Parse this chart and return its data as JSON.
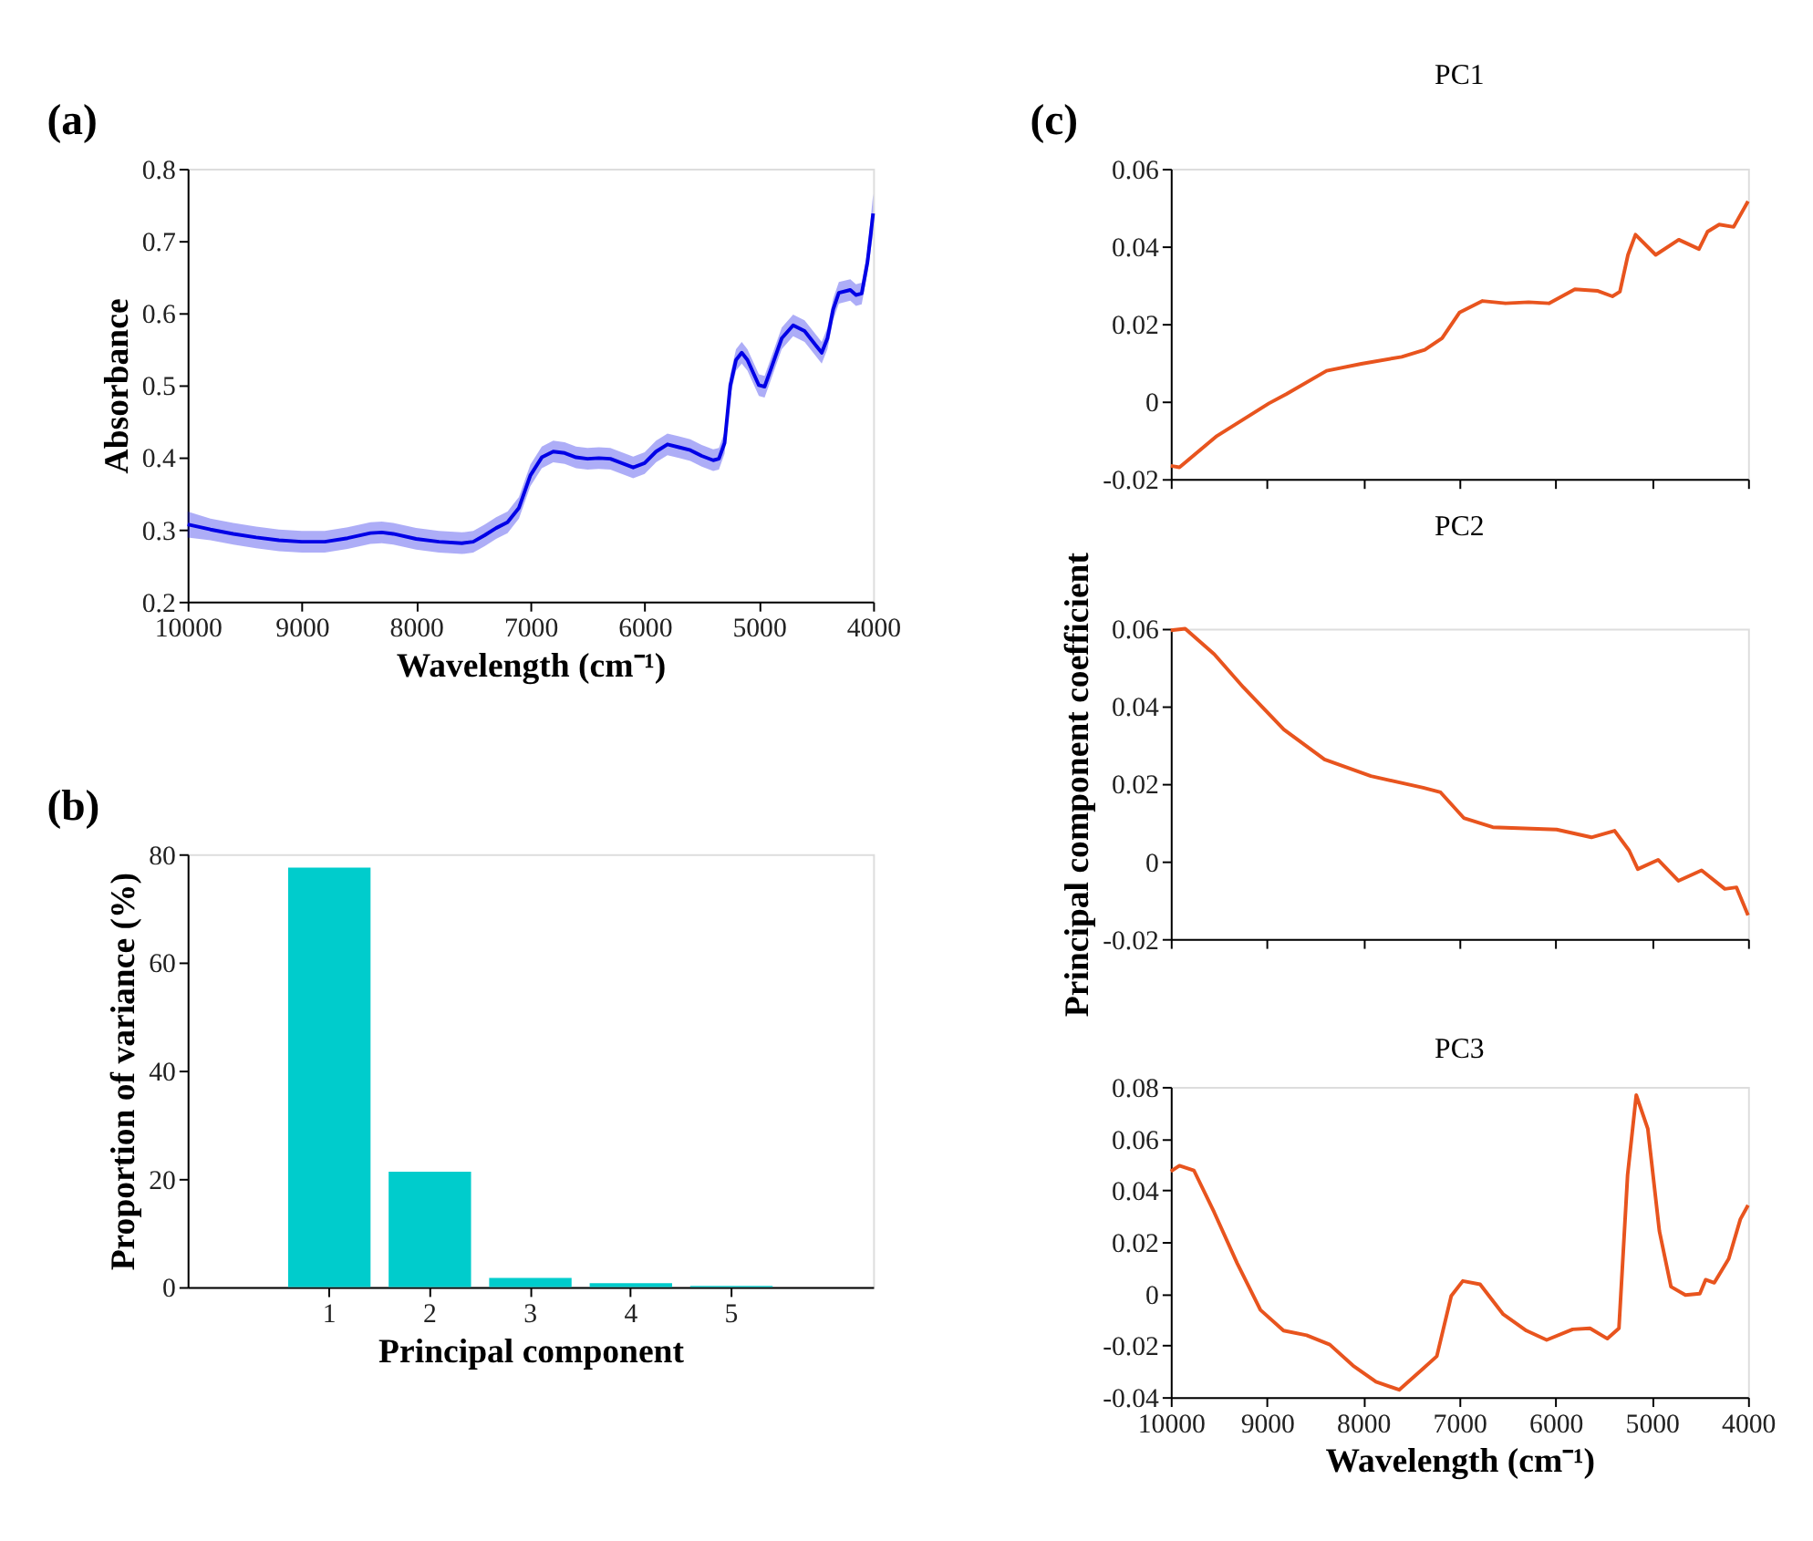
{
  "chart_data": [
    {
      "type": "line",
      "xlabel": "Wavelength (cm⁻¹)",
      "ylabel": "Absorbance",
      "annotations": [
        "(a)"
      ],
      "xlim": [
        10000,
        4000
      ],
      "xticks": [
        10000,
        9000,
        8000,
        7000,
        6000,
        5000,
        4000
      ],
      "ylim": [
        0.2,
        0.8
      ],
      "yticks": [
        0.2,
        0.3,
        0.4,
        0.5,
        0.6,
        0.7,
        0.8
      ],
      "x": [
        10000,
        9800,
        9600,
        9400,
        9200,
        9000,
        8800,
        8600,
        8400,
        8300,
        8200,
        8000,
        7800,
        7600,
        7500,
        7400,
        7300,
        7200,
        7100,
        7000,
        6900,
        6800,
        6700,
        6600,
        6500,
        6400,
        6300,
        6200,
        6100,
        6000,
        5900,
        5800,
        5700,
        5600,
        5500,
        5400,
        5350,
        5300,
        5250,
        5200,
        5150,
        5100,
        5000,
        4950,
        4900,
        4800,
        4700,
        4600,
        4500,
        4450,
        4400,
        4350,
        4300,
        4200,
        4150,
        4100,
        4050,
        4000
      ],
      "series": [
        {
          "color": "#0000e6",
          "values": [
            0.307,
            0.3,
            0.294,
            0.289,
            0.285,
            0.283,
            0.283,
            0.288,
            0.295,
            0.296,
            0.294,
            0.287,
            0.283,
            0.281,
            0.283,
            0.292,
            0.302,
            0.31,
            0.33,
            0.375,
            0.4,
            0.408,
            0.406,
            0.4,
            0.398,
            0.399,
            0.398,
            0.392,
            0.386,
            0.392,
            0.408,
            0.418,
            0.414,
            0.41,
            0.402,
            0.396,
            0.398,
            0.42,
            0.5,
            0.535,
            0.545,
            0.535,
            0.5,
            0.498,
            0.52,
            0.565,
            0.583,
            0.575,
            0.555,
            0.545,
            0.565,
            0.605,
            0.628,
            0.632,
            0.625,
            0.627,
            0.67,
            0.738
          ],
          "lower": [
            0.289,
            0.285,
            0.279,
            0.274,
            0.27,
            0.268,
            0.268,
            0.273,
            0.28,
            0.281,
            0.279,
            0.272,
            0.268,
            0.266,
            0.268,
            0.277,
            0.287,
            0.295,
            0.315,
            0.36,
            0.385,
            0.393,
            0.391,
            0.385,
            0.383,
            0.384,
            0.383,
            0.377,
            0.371,
            0.377,
            0.393,
            0.403,
            0.399,
            0.395,
            0.387,
            0.381,
            0.383,
            0.405,
            0.485,
            0.52,
            0.53,
            0.52,
            0.485,
            0.483,
            0.505,
            0.55,
            0.568,
            0.56,
            0.54,
            0.53,
            0.55,
            0.59,
            0.613,
            0.617,
            0.61,
            0.612,
            0.655,
            0.71
          ],
          "upper": [
            0.325,
            0.315,
            0.309,
            0.304,
            0.3,
            0.298,
            0.298,
            0.303,
            0.31,
            0.311,
            0.309,
            0.302,
            0.298,
            0.296,
            0.298,
            0.307,
            0.317,
            0.325,
            0.345,
            0.39,
            0.415,
            0.423,
            0.421,
            0.415,
            0.413,
            0.414,
            0.413,
            0.407,
            0.401,
            0.407,
            0.423,
            0.433,
            0.429,
            0.425,
            0.417,
            0.411,
            0.413,
            0.435,
            0.515,
            0.55,
            0.56,
            0.55,
            0.515,
            0.513,
            0.535,
            0.58,
            0.598,
            0.59,
            0.57,
            0.56,
            0.58,
            0.62,
            0.643,
            0.647,
            0.64,
            0.642,
            0.685,
            0.765
          ]
        }
      ]
    },
    {
      "type": "bar",
      "xlabel": "Principal component",
      "ylabel": "Proportion of variance (%)",
      "annotations": [
        "(b)"
      ],
      "categories": [
        "1",
        "2",
        "3",
        "4",
        "5"
      ],
      "values": [
        77.5,
        21.3,
        1.7,
        0.7,
        0.2
      ],
      "color": "#00cccc",
      "ylim": [
        0,
        80
      ],
      "yticks": [
        0,
        20,
        40,
        60,
        80
      ]
    },
    {
      "type": "line",
      "title": "PC1",
      "annotations": [
        "(c)"
      ],
      "tick_labels": "y",
      "xlim": [
        10000,
        4000
      ],
      "xticks": [
        10000,
        9000,
        8000,
        7000,
        6000,
        5000,
        4000
      ],
      "ylim": [
        -0.02,
        0.06
      ],
      "yticks": [
        -0.02,
        0,
        0.02,
        0.04,
        0.06
      ],
      "x": [
        10000,
        9910,
        9520,
        8980,
        8800,
        8380,
        8020,
        7600,
        7360,
        7180,
        7000,
        6760,
        6520,
        6280,
        6070,
        5800,
        5560,
        5410,
        5332,
        5248,
        5170,
        4960,
        4720,
        4510,
        4420,
        4300,
        4150,
        4000
      ],
      "series": [
        {
          "color": "#e8541e",
          "values": [
            -0.0166,
            -0.017,
            -0.0089,
            -0.0005,
            0.0019,
            0.0079,
            0.0097,
            0.0115,
            0.0133,
            0.0163,
            0.0229,
            0.0259,
            0.0253,
            0.0256,
            0.0253,
            0.0289,
            0.0285,
            0.0271,
            0.0283,
            0.0378,
            0.043,
            0.0378,
            0.0417,
            0.0393,
            0.0438,
            0.0456,
            0.045,
            0.0516
          ]
        }
      ]
    },
    {
      "type": "line",
      "title": "PC2",
      "ylabel": "Principal component coefficient",
      "tick_labels": "y",
      "xlim": [
        10000,
        4000
      ],
      "xticks": [
        10000,
        9000,
        8000,
        7000,
        6000,
        5000,
        4000
      ],
      "ylim": [
        -0.02,
        0.06
      ],
      "yticks": [
        -0.02,
        0,
        0.02,
        0.04,
        0.06
      ],
      "x": [
        10000,
        9850,
        9548,
        9246,
        8824,
        8402,
        7920,
        7377,
        7196,
        6955,
        6653,
        5990,
        5628,
        5387,
        5236,
        5146,
        4935,
        4724,
        4483,
        4241,
        4120,
        4000
      ],
      "series": [
        {
          "color": "#e8541e",
          "values": [
            0.0596,
            0.06,
            0.0534,
            0.0449,
            0.034,
            0.0263,
            0.022,
            0.019,
            0.0178,
            0.0112,
            0.0088,
            0.0082,
            0.0062,
            0.0079,
            0.0028,
            -0.002,
            0.0004,
            -0.005,
            -0.0023,
            -0.0071,
            -0.0067,
            -0.0139
          ]
        }
      ]
    },
    {
      "type": "line",
      "title": "PC3",
      "xlabel": "Wavelength (cm⁻¹)",
      "xlim": [
        10000,
        4000
      ],
      "xticks": [
        10000,
        9000,
        8000,
        7000,
        6000,
        5000,
        4000
      ],
      "ylim": [
        -0.04,
        0.08
      ],
      "yticks": [
        -0.04,
        -0.02,
        0,
        0.02,
        0.04,
        0.06,
        0.08
      ],
      "x": [
        10000,
        9910,
        9760,
        9549,
        9309,
        9068,
        8828,
        8588,
        8347,
        8107,
        7867,
        7626,
        7386,
        7235,
        7085,
        6965,
        6785,
        6544,
        6304,
        6093,
        5823,
        5643,
        5462,
        5342,
        5252,
        5162,
        5042,
        4922,
        4801,
        4651,
        4501,
        4441,
        4351,
        4201,
        4080,
        4000
      ],
      "series": [
        {
          "color": "#e8541e",
          "values": [
            0.0473,
            0.0495,
            0.0477,
            0.0315,
            0.0117,
            -0.0063,
            -0.0143,
            -0.0161,
            -0.0197,
            -0.0278,
            -0.0341,
            -0.0372,
            -0.0293,
            -0.0242,
            -0.0009,
            0.0049,
            0.0036,
            -0.008,
            -0.0143,
            -0.0179,
            -0.0138,
            -0.0134,
            -0.0174,
            -0.0134,
            0.0459,
            0.0768,
            0.0638,
            0.0243,
            0.0027,
            -0.0005,
            0.0,
            0.0054,
            0.0042,
            0.0135,
            0.0288,
            0.0342
          ]
        }
      ]
    }
  ]
}
